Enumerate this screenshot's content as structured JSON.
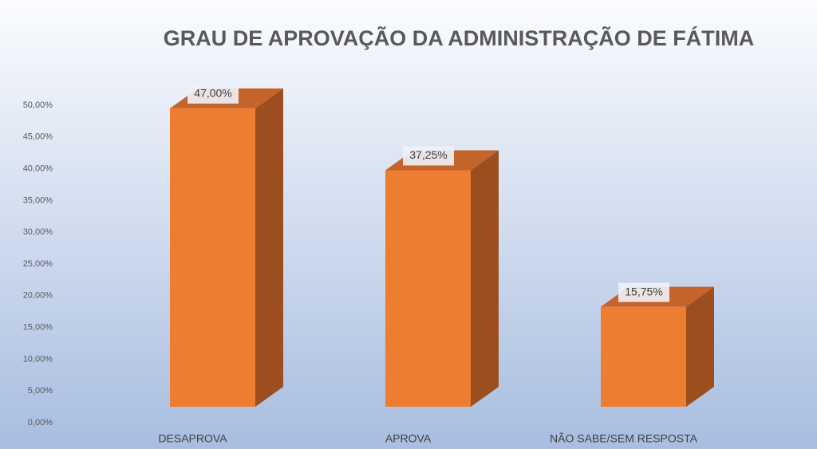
{
  "chart_data": {
    "type": "bar3d",
    "title": "GRAU DE APROVAÇÃO DA ADMINISTRAÇÃO DE FÁTIMA",
    "categories": [
      "DESAPROVA",
      "APROVA",
      "NÃO SABE/SEM RESPOSTA"
    ],
    "values": [
      47,
      37.25,
      15.75
    ],
    "value_labels": [
      "47,00%",
      "37,25%",
      "15,75%"
    ],
    "color": "#ed7d31",
    "ylim": [
      0,
      50
    ],
    "yticks": [
      {
        "value": 0,
        "label": "0,00%"
      },
      {
        "value": 5,
        "label": "5,00%"
      },
      {
        "value": 10,
        "label": "10,00%"
      },
      {
        "value": 15,
        "label": "15,00%"
      },
      {
        "value": 20,
        "label": "20,00%"
      },
      {
        "value": 25,
        "label": "25,00%"
      },
      {
        "value": 30,
        "label": "30,00%"
      },
      {
        "value": 35,
        "label": "35,00%"
      },
      {
        "value": 40,
        "label": "40,00%"
      },
      {
        "value": 45,
        "label": "45,00%"
      },
      {
        "value": 50,
        "label": "50,00%"
      }
    ]
  }
}
